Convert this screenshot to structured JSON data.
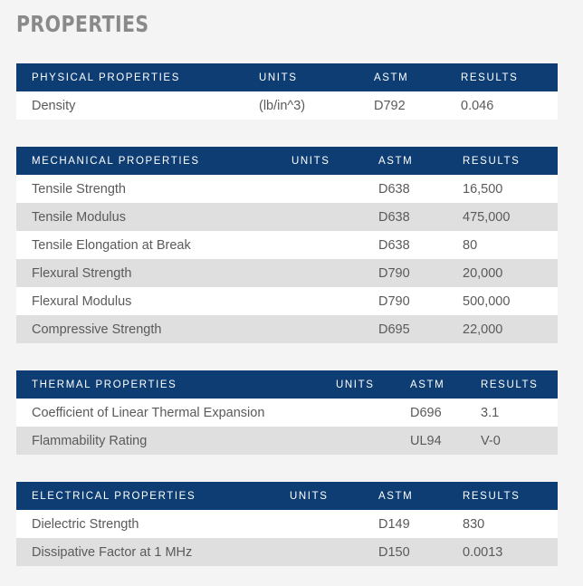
{
  "title": "PROPERTIES",
  "sections": [
    {
      "headers": [
        "PHYSICAL PROPERTIES",
        "UNITS",
        "ASTM",
        "RESULTS"
      ],
      "rows": [
        [
          "Density",
          "(lb/in^3)",
          "D792",
          "0.046"
        ]
      ]
    },
    {
      "headers": [
        "MECHANICAL PROPERTIES",
        "UNITS",
        "ASTM",
        "RESULTS"
      ],
      "rows": [
        [
          "Tensile Strength",
          "",
          "D638",
          "16,500"
        ],
        [
          "Tensile Modulus",
          "",
          "D638",
          "475,000"
        ],
        [
          "Tensile Elongation at Break",
          "",
          "D638",
          "80"
        ],
        [
          "Flexural Strength",
          "",
          "D790",
          "20,000"
        ],
        [
          "Flexural Modulus",
          "",
          "D790",
          "500,000"
        ],
        [
          "Compressive Strength",
          "",
          "D695",
          "22,000"
        ]
      ]
    },
    {
      "headers": [
        "THERMAL PROPERTIES",
        "UNITS",
        "ASTM",
        "RESULTS"
      ],
      "rows": [
        [
          "Coefficient of Linear Thermal Expansion",
          "",
          "D696",
          "3.1"
        ],
        [
          "Flammability Rating",
          "",
          "UL94",
          "V-0"
        ]
      ]
    },
    {
      "headers": [
        "ELECTRICAL PROPERTIES",
        "UNITS",
        "ASTM",
        "RESULTS"
      ],
      "rows": [
        [
          "Dielectric Strength",
          "",
          "D149",
          "830"
        ],
        [
          "Dissipative Factor at 1 MHz",
          "",
          "D150",
          "0.0013"
        ]
      ]
    }
  ],
  "colors": {
    "header_bg": "#0d3d73",
    "row_light": "#ffffff",
    "row_dark": "#dfdfdf",
    "title": "#8a8a8a"
  }
}
